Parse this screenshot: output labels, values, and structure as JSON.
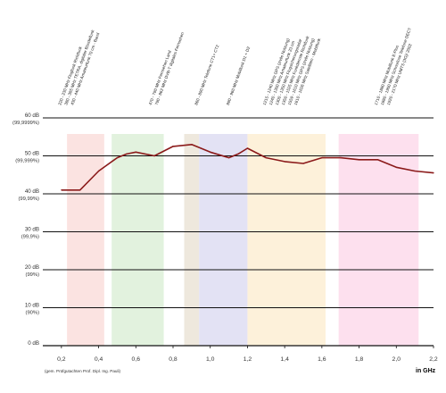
{
  "chart_data": {
    "type": "line",
    "x_unit_label": "in GHz",
    "xlim": [
      0.1,
      2.2
    ],
    "ylim": [
      0,
      60
    ],
    "x_ticks": [
      {
        "value": 0.2,
        "label": "0,2"
      },
      {
        "value": 0.4,
        "label": "0,4"
      },
      {
        "value": 0.6,
        "label": "0,6"
      },
      {
        "value": 0.8,
        "label": "0,8"
      },
      {
        "value": 1.0,
        "label": "1,0"
      },
      {
        "value": 1.2,
        "label": "1,2"
      },
      {
        "value": 1.4,
        "label": "1,4"
      },
      {
        "value": 1.6,
        "label": "1,6"
      },
      {
        "value": 1.8,
        "label": "1,8"
      },
      {
        "value": 2.0,
        "label": "2,0"
      },
      {
        "value": 2.2,
        "label": "2,2"
      }
    ],
    "y_ticks": [
      {
        "value": 60,
        "db": "60 dB",
        "pct": "(99,9999%)"
      },
      {
        "value": 50,
        "db": "50 dB",
        "pct": "(99,999%)"
      },
      {
        "value": 40,
        "db": "40 dB",
        "pct": "(99,99%)"
      },
      {
        "value": 30,
        "db": "30 dB",
        "pct": "(99,9%)"
      },
      {
        "value": 20,
        "db": "20 dB",
        "pct": "(99%)"
      },
      {
        "value": 10,
        "db": "10 dB",
        "pct": "(90%)"
      },
      {
        "value": 0,
        "db": "0 dB",
        "pct": ""
      }
    ],
    "grid": true,
    "series": [
      {
        "color": "#8b1a1a",
        "x": [
          0.2,
          0.3,
          0.4,
          0.5,
          0.55,
          0.6,
          0.7,
          0.8,
          0.9,
          0.95,
          1.0,
          1.1,
          1.15,
          1.2,
          1.3,
          1.4,
          1.5,
          1.6,
          1.7,
          1.8,
          1.9,
          2.0,
          2.1,
          2.2
        ],
        "y": [
          41,
          41,
          46,
          49.5,
          50.5,
          51,
          50,
          52.5,
          53,
          52,
          51,
          49.5,
          50.5,
          52,
          49.5,
          48.5,
          48,
          49.5,
          49.5,
          49,
          49,
          47,
          46,
          45.5
        ]
      }
    ],
    "bands": [
      {
        "x0": 0.23,
        "x1": 0.43,
        "color": "#fbe3e1"
      },
      {
        "x0": 0.47,
        "x1": 0.75,
        "color": "#e2f2de"
      },
      {
        "x0": 0.86,
        "x1": 0.94,
        "color": "#eee8dd"
      },
      {
        "x0": 0.94,
        "x1": 1.2,
        "color": "#e3e2f4"
      },
      {
        "x0": 1.2,
        "x1": 1.62,
        "color": "#fdf1da"
      },
      {
        "x0": 1.69,
        "x1": 2.12,
        "color": "#fde0ee"
      }
    ],
    "band_labels": [
      {
        "x": 0.23,
        "lines": [
          "220 - 230 MHz Flugfunk Richtfunk",
          "380 - 385 MHz TETRA, digitaler Bündelfunk",
          "430 - 440 MHz Amateurfunk 70 cm - Band"
        ]
      },
      {
        "x": 0.7,
        "lines": [
          "470 - 790 MHz Fernsehen Land",
          "790 - 862 MHz DVB-T digitales Fernsehen"
        ]
      },
      {
        "x": 0.93,
        "lines": [
          "860 - 890 MHz Telefone CT1+ CT2"
        ]
      },
      {
        "x": 1.1,
        "lines": [
          "890 - 960 MHz Mobilfunk D1 + D2"
        ]
      },
      {
        "x": 1.38,
        "lines": [
          "1215 - 1240 MHz GPS (zivile Nutzung)",
          "1240 - 1300 MHz Amateurfunk 23 cm",
          "1300 - 1350 MHz Flugsicherungsradar",
          "1350 - 1525 MHz Funkdienste Richtfunk",
          "1559 - 1610 MHz GPS (zivile Nutzung)",
          "1610 - 1626 MHz Satelliten - Mobilfunk"
        ]
      },
      {
        "x": 1.93,
        "lines": [
          "1710 - 1880 MHz Mobilfunk E-Plus",
          "1880 - 1900 MHz Schnurlose Telefone DECT",
          "1920 - 2170 MHz UMTS (3G)/ 2002"
        ]
      }
    ],
    "footnote": "(gem. Prüfgutachten Prof. Dipl. Ing. Pauli)"
  }
}
